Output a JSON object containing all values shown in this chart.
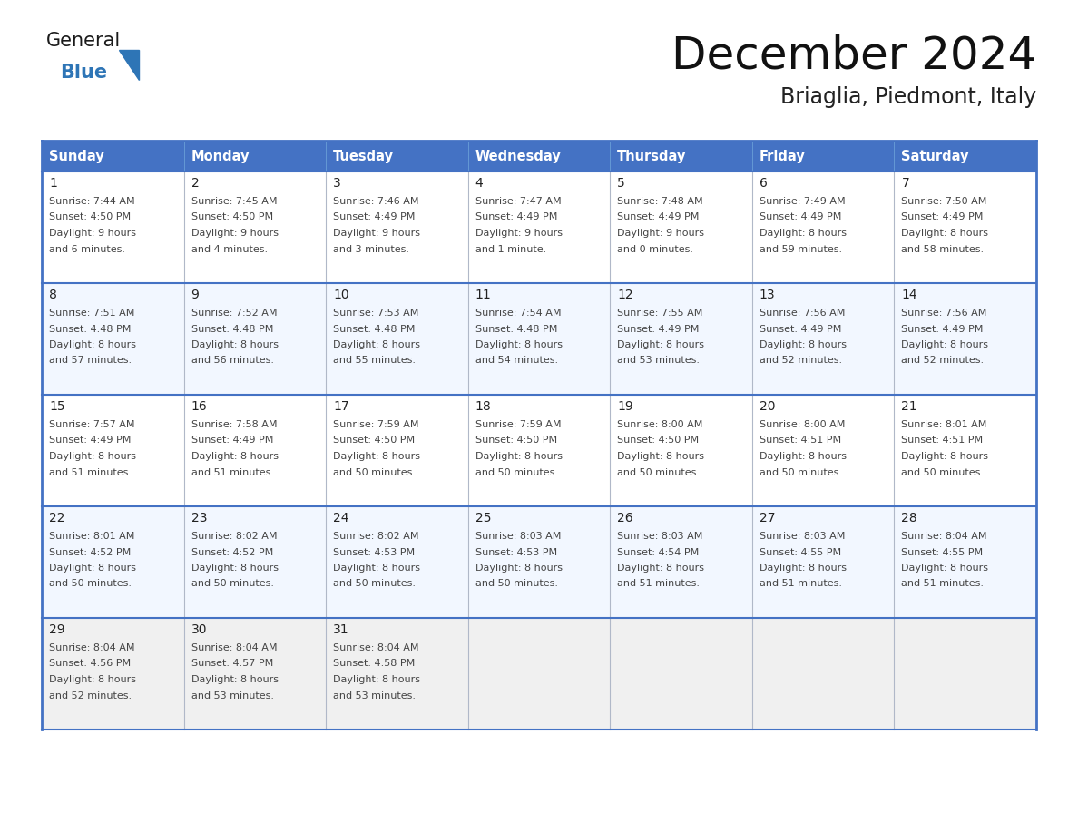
{
  "title": "December 2024",
  "subtitle": "Briaglia, Piedmont, Italy",
  "days_of_week": [
    "Sunday",
    "Monday",
    "Tuesday",
    "Wednesday",
    "Thursday",
    "Friday",
    "Saturday"
  ],
  "header_bg": "#4472C4",
  "header_text": "#FFFFFF",
  "cell_bg_even": "#FFFFFF",
  "cell_bg_odd": "#F2F7FF",
  "cell_bg_last": "#F0F0F0",
  "cell_border": "#B0B8C8",
  "day_num_color": "#222222",
  "info_color": "#444444",
  "row_sep_color": "#4472C4",
  "logo_general_color": "#1a1a1a",
  "logo_blue_color": "#2E75B6",
  "title_color": "#111111",
  "subtitle_color": "#222222",
  "calendar": [
    [
      {
        "day": 1,
        "sunrise": "7:44 AM",
        "sunset": "4:50 PM",
        "daylight": "9 hours and 6 minutes"
      },
      {
        "day": 2,
        "sunrise": "7:45 AM",
        "sunset": "4:50 PM",
        "daylight": "9 hours and 4 minutes"
      },
      {
        "day": 3,
        "sunrise": "7:46 AM",
        "sunset": "4:49 PM",
        "daylight": "9 hours and 3 minutes"
      },
      {
        "day": 4,
        "sunrise": "7:47 AM",
        "sunset": "4:49 PM",
        "daylight": "9 hours and 1 minute"
      },
      {
        "day": 5,
        "sunrise": "7:48 AM",
        "sunset": "4:49 PM",
        "daylight": "9 hours and 0 minutes"
      },
      {
        "day": 6,
        "sunrise": "7:49 AM",
        "sunset": "4:49 PM",
        "daylight": "8 hours and 59 minutes"
      },
      {
        "day": 7,
        "sunrise": "7:50 AM",
        "sunset": "4:49 PM",
        "daylight": "8 hours and 58 minutes"
      }
    ],
    [
      {
        "day": 8,
        "sunrise": "7:51 AM",
        "sunset": "4:48 PM",
        "daylight": "8 hours and 57 minutes"
      },
      {
        "day": 9,
        "sunrise": "7:52 AM",
        "sunset": "4:48 PM",
        "daylight": "8 hours and 56 minutes"
      },
      {
        "day": 10,
        "sunrise": "7:53 AM",
        "sunset": "4:48 PM",
        "daylight": "8 hours and 55 minutes"
      },
      {
        "day": 11,
        "sunrise": "7:54 AM",
        "sunset": "4:48 PM",
        "daylight": "8 hours and 54 minutes"
      },
      {
        "day": 12,
        "sunrise": "7:55 AM",
        "sunset": "4:49 PM",
        "daylight": "8 hours and 53 minutes"
      },
      {
        "day": 13,
        "sunrise": "7:56 AM",
        "sunset": "4:49 PM",
        "daylight": "8 hours and 52 minutes"
      },
      {
        "day": 14,
        "sunrise": "7:56 AM",
        "sunset": "4:49 PM",
        "daylight": "8 hours and 52 minutes"
      }
    ],
    [
      {
        "day": 15,
        "sunrise": "7:57 AM",
        "sunset": "4:49 PM",
        "daylight": "8 hours and 51 minutes"
      },
      {
        "day": 16,
        "sunrise": "7:58 AM",
        "sunset": "4:49 PM",
        "daylight": "8 hours and 51 minutes"
      },
      {
        "day": 17,
        "sunrise": "7:59 AM",
        "sunset": "4:50 PM",
        "daylight": "8 hours and 50 minutes"
      },
      {
        "day": 18,
        "sunrise": "7:59 AM",
        "sunset": "4:50 PM",
        "daylight": "8 hours and 50 minutes"
      },
      {
        "day": 19,
        "sunrise": "8:00 AM",
        "sunset": "4:50 PM",
        "daylight": "8 hours and 50 minutes"
      },
      {
        "day": 20,
        "sunrise": "8:00 AM",
        "sunset": "4:51 PM",
        "daylight": "8 hours and 50 minutes"
      },
      {
        "day": 21,
        "sunrise": "8:01 AM",
        "sunset": "4:51 PM",
        "daylight": "8 hours and 50 minutes"
      }
    ],
    [
      {
        "day": 22,
        "sunrise": "8:01 AM",
        "sunset": "4:52 PM",
        "daylight": "8 hours and 50 minutes"
      },
      {
        "day": 23,
        "sunrise": "8:02 AM",
        "sunset": "4:52 PM",
        "daylight": "8 hours and 50 minutes"
      },
      {
        "day": 24,
        "sunrise": "8:02 AM",
        "sunset": "4:53 PM",
        "daylight": "8 hours and 50 minutes"
      },
      {
        "day": 25,
        "sunrise": "8:03 AM",
        "sunset": "4:53 PM",
        "daylight": "8 hours and 50 minutes"
      },
      {
        "day": 26,
        "sunrise": "8:03 AM",
        "sunset": "4:54 PM",
        "daylight": "8 hours and 51 minutes"
      },
      {
        "day": 27,
        "sunrise": "8:03 AM",
        "sunset": "4:55 PM",
        "daylight": "8 hours and 51 minutes"
      },
      {
        "day": 28,
        "sunrise": "8:04 AM",
        "sunset": "4:55 PM",
        "daylight": "8 hours and 51 minutes"
      }
    ],
    [
      {
        "day": 29,
        "sunrise": "8:04 AM",
        "sunset": "4:56 PM",
        "daylight": "8 hours and 52 minutes"
      },
      {
        "day": 30,
        "sunrise": "8:04 AM",
        "sunset": "4:57 PM",
        "daylight": "8 hours and 53 minutes"
      },
      {
        "day": 31,
        "sunrise": "8:04 AM",
        "sunset": "4:58 PM",
        "daylight": "8 hours and 53 minutes"
      },
      null,
      null,
      null,
      null
    ]
  ]
}
